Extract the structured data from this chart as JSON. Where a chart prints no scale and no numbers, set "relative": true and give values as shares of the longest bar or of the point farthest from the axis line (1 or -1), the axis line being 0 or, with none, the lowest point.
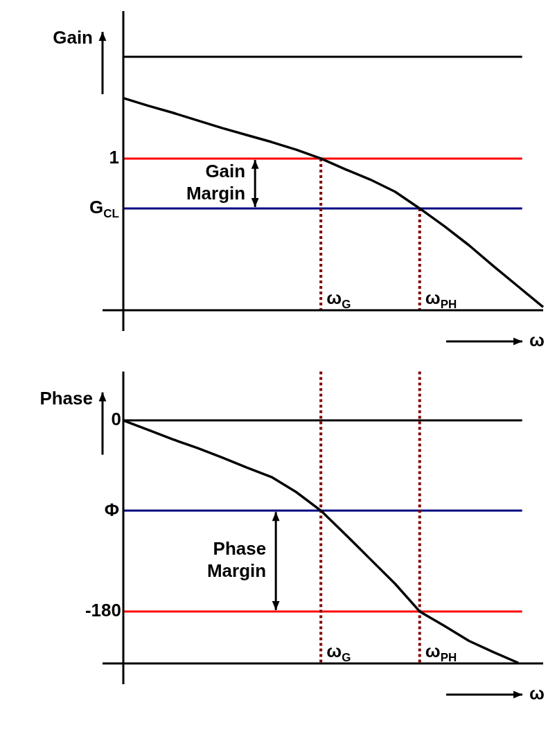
{
  "chart_data": [
    {
      "type": "line",
      "ylabel": "Gain",
      "xlabel": "ω",
      "relative": true,
      "color": "#000000",
      "marker": "none",
      "grid": false,
      "tick_labels": false,
      "categories": [
        null,
        null,
        null,
        null,
        null,
        null,
        null,
        null,
        null,
        null,
        null,
        null,
        null,
        null,
        null,
        null,
        null,
        null
      ],
      "values": [
        1,
        0.964,
        0.931,
        0.895,
        0.859,
        0.826,
        0.793,
        0.757,
        0.715,
        0.664,
        0.616,
        0.559,
        0.48,
        0.396,
        0.306,
        0.207,
        0.111,
        0.015
      ],
      "ref_lines": [
        {
          "axis": "y",
          "value": 1.195,
          "color": "#000000"
        },
        {
          "axis": "y",
          "value": 0.715,
          "label": "1",
          "color": "#ff0000"
        },
        {
          "axis": "y",
          "value": 0.48,
          "label": "G$_{CL}$",
          "color": "#000080"
        }
      ],
      "annotations": [
        "Gain Margin",
        "ω$_{G}$",
        "ω$_{PH}$"
      ]
    },
    {
      "type": "line",
      "ylabel": "Phase",
      "xlabel": "ω",
      "color": "#000000",
      "marker": "none",
      "grid": false,
      "tick_labels": "y",
      "ylim": [
        -229,
        46
      ],
      "yticks": [
        0,
        -180
      ],
      "categories": [
        null,
        null,
        null,
        null,
        null,
        null,
        null,
        null,
        null,
        null,
        null,
        null,
        null,
        null,
        null,
        null,
        null,
        null
      ],
      "values": [
        0,
        -8.9,
        -17.8,
        -26,
        -34.9,
        -44.4,
        -53.3,
        -67.5,
        -85,
        -107.6,
        -130.7,
        -153.8,
        -180,
        -193.6,
        -207.8,
        -218.5,
        -228.5,
        null
      ],
      "ref_lines": [
        {
          "axis": "y",
          "value": 0,
          "color": "#000000"
        },
        {
          "axis": "y",
          "value": -85,
          "label": "Φ",
          "color": "#000080"
        },
        {
          "axis": "y",
          "value": -180,
          "color": "#ff0000"
        }
      ],
      "annotations": [
        "Phase Margin",
        "ω$_{G}$",
        "ω$_{PH}$"
      ]
    }
  ]
}
